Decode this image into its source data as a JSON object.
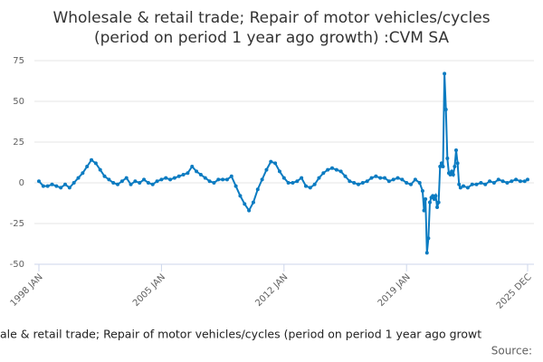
{
  "chart_data": {
    "type": "line",
    "title": "Wholesale & retail trade; Repair of motor vehicles/cycles",
    "subtitle": "(period on period 1 year ago growth) :CVM SA",
    "caption": "ale & retail trade; Repair of motor vehicles/cycles (period on period 1 year ago growt",
    "source": "Source:",
    "x": [
      1998,
      1998.25,
      1998.5,
      1998.75,
      1999,
      1999.25,
      1999.5,
      1999.75,
      2000,
      2000.25,
      2000.5,
      2000.75,
      2001,
      2001.25,
      2001.5,
      2001.75,
      2002,
      2002.25,
      2002.5,
      2002.75,
      2003,
      2003.25,
      2003.5,
      2003.75,
      2004,
      2004.25,
      2004.5,
      2004.75,
      2005,
      2005.25,
      2005.5,
      2005.75,
      2006,
      2006.25,
      2006.5,
      2006.75,
      2007,
      2007.25,
      2007.5,
      2007.75,
      2008,
      2008.25,
      2008.5,
      2008.75,
      2009,
      2009.25,
      2009.5,
      2009.75,
      2010,
      2010.25,
      2010.5,
      2010.75,
      2011,
      2011.25,
      2011.5,
      2011.75,
      2012,
      2012.25,
      2012.5,
      2012.75,
      2013,
      2013.25,
      2013.5,
      2013.75,
      2014,
      2014.25,
      2014.5,
      2014.75,
      2015,
      2015.25,
      2015.5,
      2015.75,
      2016,
      2016.25,
      2016.5,
      2016.75,
      2017,
      2017.25,
      2017.5,
      2017.75,
      2018,
      2018.25,
      2018.5,
      2018.75,
      2019,
      2019.25,
      2019.5,
      2019.75,
      2019.917,
      2020,
      2020.083,
      2020.167,
      2020.25,
      2020.333,
      2020.417,
      2020.5,
      2020.583,
      2020.667,
      2020.75,
      2020.833,
      2020.917,
      2021,
      2021.083,
      2021.167,
      2021.25,
      2021.333,
      2021.417,
      2021.5,
      2021.583,
      2021.667,
      2021.75,
      2021.833,
      2021.917,
      2022,
      2022.083,
      2022.25,
      2022.5,
      2022.75,
      2023,
      2023.25,
      2023.5,
      2023.75,
      2024,
      2024.25,
      2024.5,
      2024.75,
      2025,
      2025.25,
      2025.5,
      2025.75,
      2025.917
    ],
    "series": [
      {
        "color": "#0b7bc1",
        "values": [
          1,
          -2,
          -2,
          -1,
          -2,
          -3,
          -1,
          -3,
          0,
          3,
          6,
          10,
          14,
          12,
          8,
          4,
          2,
          0,
          -1,
          1,
          3,
          -1,
          1,
          0,
          2,
          0,
          -1,
          1,
          2,
          3,
          2,
          3,
          4,
          5,
          6,
          10,
          7,
          5,
          3,
          1,
          0,
          2,
          2,
          2,
          4,
          -2,
          -8,
          -13,
          -17,
          -12,
          -4,
          2,
          8,
          13,
          12,
          7,
          3,
          0,
          0,
          1,
          3,
          -2,
          -3,
          -1,
          3,
          6,
          8,
          9,
          8,
          7,
          4,
          1,
          0,
          -1,
          0,
          1,
          3,
          4,
          3,
          3,
          1,
          2,
          3,
          2,
          0,
          -1,
          2,
          0,
          -5,
          -17,
          -10,
          -43,
          -34,
          -12,
          -9,
          -8,
          -10,
          -8,
          -15,
          -12,
          10,
          12,
          10,
          67,
          45,
          15,
          6,
          5,
          7,
          5,
          10,
          20,
          12,
          -1,
          -3,
          -2,
          -3,
          -1,
          -1,
          0,
          -1,
          1,
          0,
          2,
          1,
          0,
          1,
          2,
          1,
          1,
          2
        ]
      }
    ],
    "xlim": [
      1998,
      2025.917
    ],
    "xticks": [
      {
        "value": 1998,
        "label": "1998 JAN"
      },
      {
        "value": 2005,
        "label": "2005 JAN"
      },
      {
        "value": 2012,
        "label": "2012 JAN"
      },
      {
        "value": 2019,
        "label": "2019 JAN"
      },
      {
        "value": 2025.917,
        "label": "2025 DEC"
      }
    ],
    "ylim": [
      -50,
      75
    ],
    "yticks": [
      -50,
      -25,
      0,
      25,
      50,
      75
    ],
    "grid": true
  }
}
